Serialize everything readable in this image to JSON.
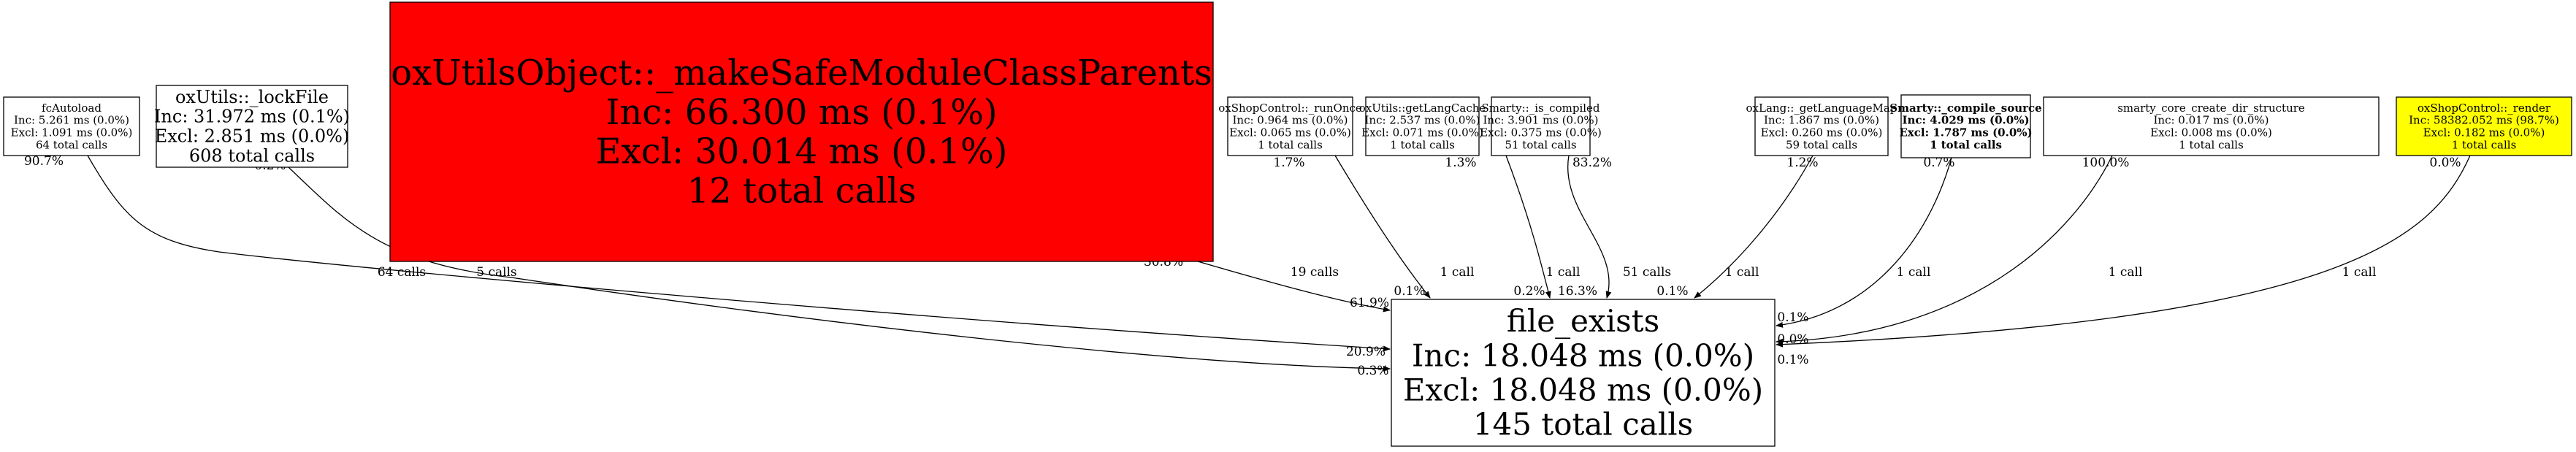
{
  "graph": {
    "nodes": [
      {
        "id": "fcAutoload",
        "name": "fcAutoload",
        "inc": "Inc: 5.261 ms (0.0%)",
        "excl": "Excl: 1.091 ms (0.0%)",
        "calls": "64 total calls",
        "fill": "#ffffff",
        "bold": false
      },
      {
        "id": "lockFile",
        "name": "oxUtils::_lockFile",
        "inc": "Inc: 31.972 ms (0.1%)",
        "excl": "Excl: 2.851 ms (0.0%)",
        "calls": "608 total calls",
        "fill": "#ffffff",
        "bold": false
      },
      {
        "id": "makeSafe",
        "name": "oxUtilsObject::_makeSafeModuleClassParents",
        "inc": "Inc: 66.300 ms (0.1%)",
        "excl": "Excl: 30.014 ms (0.1%)",
        "calls": "12 total calls",
        "fill": "#ff0000",
        "bold": false
      },
      {
        "id": "runOnce",
        "name": "oxShopControl::_runOnce",
        "inc": "Inc: 0.964 ms (0.0%)",
        "excl": "Excl: 0.065 ms (0.0%)",
        "calls": "1 total calls",
        "fill": "#ffffff",
        "bold": false
      },
      {
        "id": "getLangCache",
        "name": "oxUtils::getLangCache",
        "inc": "Inc: 2.537 ms (0.0%)",
        "excl": "Excl: 0.071 ms (0.0%)",
        "calls": "1 total calls",
        "fill": "#ffffff",
        "bold": false
      },
      {
        "id": "isCompiled",
        "name": "Smarty::_is_compiled",
        "inc": "Inc: 3.901 ms (0.0%)",
        "excl": "Excl: 0.375 ms (0.0%)",
        "calls": "51 total calls",
        "fill": "#ffffff",
        "bold": false
      },
      {
        "id": "getLanguageMap",
        "name": "oxLang::_getLanguageMap",
        "inc": "Inc: 1.867 ms (0.0%)",
        "excl": "Excl: 0.260 ms (0.0%)",
        "calls": "59 total calls",
        "fill": "#ffffff",
        "bold": false
      },
      {
        "id": "compileSource",
        "name": "Smarty::_compile_source",
        "inc": "Inc: 4.029 ms (0.0%)",
        "excl": "Excl: 1.787 ms (0.0%)",
        "calls": "1 total calls",
        "fill": "#ffffff",
        "bold": true
      },
      {
        "id": "smartyCore",
        "name": "smarty_core_create_dir_structure",
        "inc": "Inc: 0.017 ms (0.0%)",
        "excl": "Excl: 0.008 ms (0.0%)",
        "calls": "1 total calls",
        "fill": "#ffffff",
        "bold": false
      },
      {
        "id": "render",
        "name": "oxShopControl::_render",
        "inc": "Inc: 58382.052 ms (98.7%)",
        "excl": "Excl: 0.182 ms (0.0%)",
        "calls": "1 total calls",
        "fill": "#ffff00",
        "bold": false
      },
      {
        "id": "fileExists",
        "name": "file_exists",
        "inc": "Inc: 18.048 ms (0.0%)",
        "excl": "Excl: 18.048 ms (0.0%)",
        "calls": "145 total calls",
        "fill": "#ffffff",
        "bold": false
      }
    ],
    "edges": [
      {
        "from": "fcAutoload",
        "to": "fileExists",
        "label": "64 calls",
        "tail": "90.7%",
        "head": "20.9%"
      },
      {
        "from": "lockFile",
        "to": "fileExists",
        "label": "5 calls",
        "tail": "0.2%",
        "head": "0.3%"
      },
      {
        "from": "makeSafe",
        "to": "fileExists",
        "label": "19 calls",
        "tail": "30.8%",
        "head": "61.9%"
      },
      {
        "from": "runOnce",
        "to": "fileExists",
        "label": "1 call",
        "tail": "1.7%",
        "head": "0.1%"
      },
      {
        "from": "getLangCache",
        "to": "fileExists",
        "label": "1 call",
        "tail": "1.3%",
        "head": "0.2%"
      },
      {
        "from": "isCompiled",
        "to": "fileExists",
        "label": "51 calls",
        "tail": "83.2%",
        "head": "16.3%"
      },
      {
        "from": "getLanguageMap",
        "to": "fileExists",
        "label": "1 call",
        "tail": "1.2%",
        "head": "0.1%"
      },
      {
        "from": "compileSource",
        "to": "fileExists",
        "label": "1 call",
        "tail": "0.7%",
        "head": "0.1%"
      },
      {
        "from": "smartyCore",
        "to": "fileExists",
        "label": "1 call",
        "tail": "100.0%",
        "head": "0.0%"
      },
      {
        "from": "render",
        "to": "fileExists",
        "label": "1 call",
        "tail": "0.0%",
        "head": "0.1%"
      }
    ]
  }
}
